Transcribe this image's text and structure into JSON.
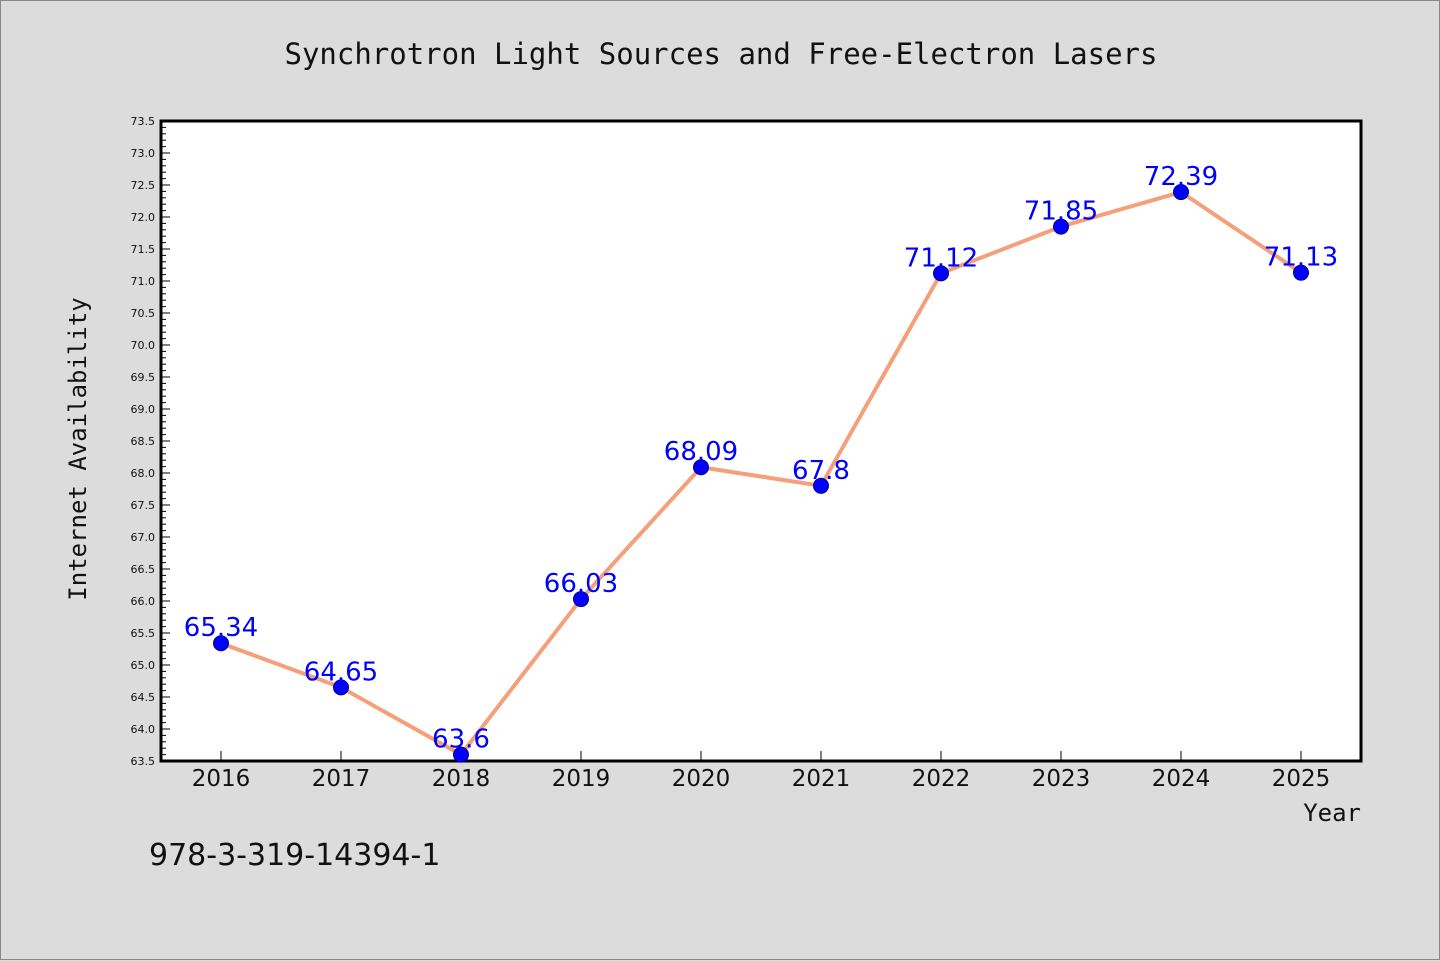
{
  "chart_data": {
    "type": "line",
    "title": "Synchrotron Light Sources and Free-Electron Lasers",
    "xlabel": "Year",
    "ylabel": "Internet Availability",
    "categories": [
      "2016",
      "2017",
      "2018",
      "2019",
      "2020",
      "2021",
      "2022",
      "2023",
      "2024",
      "2025"
    ],
    "series": [
      {
        "values": [
          65.34,
          64.65,
          63.6,
          66.03,
          68.09,
          67.8,
          71.12,
          71.85,
          72.39,
          71.13
        ],
        "labels": [
          "65.34",
          "64.65",
          "63.6",
          "66.03",
          "68.09",
          "67.8",
          "71.12",
          "71.85",
          "72.39",
          "71.13"
        ],
        "line_color": "#f4a07a",
        "marker_color": "#0000ff"
      }
    ],
    "ylim": [
      63.5,
      73.5
    ],
    "yticks": [
      "63.5",
      "64.0",
      "64.5",
      "65.0",
      "65.5",
      "66.0",
      "66.5",
      "67.0",
      "67.5",
      "68.0",
      "68.5",
      "69.0",
      "69.5",
      "70.0",
      "70.5",
      "71.0",
      "71.5",
      "72.0",
      "72.5",
      "73.0",
      "73.5"
    ],
    "grid": false,
    "legend": "none"
  },
  "footer_note": "978-3-319-14394-1",
  "colors": {
    "background": "#dcdcdc",
    "plot_background": "#ffffff",
    "data_label": "#0000ff"
  }
}
